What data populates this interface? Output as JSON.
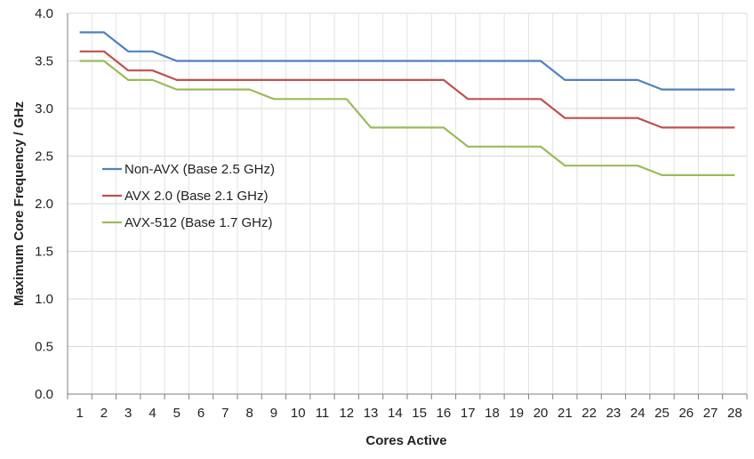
{
  "chart_data": {
    "type": "line",
    "title": "",
    "xlabel": "Cores Active",
    "ylabel": "Maximum Core Frequency / GHz",
    "x": [
      1,
      2,
      3,
      4,
      5,
      6,
      7,
      8,
      9,
      10,
      11,
      12,
      13,
      14,
      15,
      16,
      17,
      18,
      19,
      20,
      21,
      22,
      23,
      24,
      25,
      26,
      27,
      28
    ],
    "x_tick_labels": [
      "1",
      "2",
      "3",
      "4",
      "5",
      "6",
      "7",
      "8",
      "9",
      "10",
      "11",
      "12",
      "13",
      "14",
      "15",
      "16",
      "17",
      "18",
      "19",
      "20",
      "21",
      "22",
      "23",
      "24",
      "25",
      "26",
      "27",
      "28"
    ],
    "y_tick_labels": [
      "0.0",
      "0.5",
      "1.0",
      "1.5",
      "2.0",
      "2.5",
      "3.0",
      "3.5",
      "4.0"
    ],
    "ylim": [
      0,
      4.0
    ],
    "grid": true,
    "legend_position": "left-middle",
    "series": [
      {
        "name": "Non-AVX (Base 2.5 GHz)",
        "color": "#4f81bd",
        "values": [
          3.8,
          3.8,
          3.6,
          3.6,
          3.5,
          3.5,
          3.5,
          3.5,
          3.5,
          3.5,
          3.5,
          3.5,
          3.5,
          3.5,
          3.5,
          3.5,
          3.5,
          3.5,
          3.5,
          3.5,
          3.3,
          3.3,
          3.3,
          3.3,
          3.2,
          3.2,
          3.2,
          3.2
        ]
      },
      {
        "name": "AVX 2.0 (Base 2.1 GHz)",
        "color": "#c0504d",
        "values": [
          3.6,
          3.6,
          3.4,
          3.4,
          3.3,
          3.3,
          3.3,
          3.3,
          3.3,
          3.3,
          3.3,
          3.3,
          3.3,
          3.3,
          3.3,
          3.3,
          3.1,
          3.1,
          3.1,
          3.1,
          2.9,
          2.9,
          2.9,
          2.9,
          2.8,
          2.8,
          2.8,
          2.8
        ]
      },
      {
        "name": "AVX-512 (Base 1.7 GHz)",
        "color": "#9bbb59",
        "values": [
          3.5,
          3.5,
          3.3,
          3.3,
          3.2,
          3.2,
          3.2,
          3.2,
          3.1,
          3.1,
          3.1,
          3.1,
          2.8,
          2.8,
          2.8,
          2.8,
          2.6,
          2.6,
          2.6,
          2.6,
          2.4,
          2.4,
          2.4,
          2.4,
          2.3,
          2.3,
          2.3,
          2.3
        ]
      }
    ]
  }
}
